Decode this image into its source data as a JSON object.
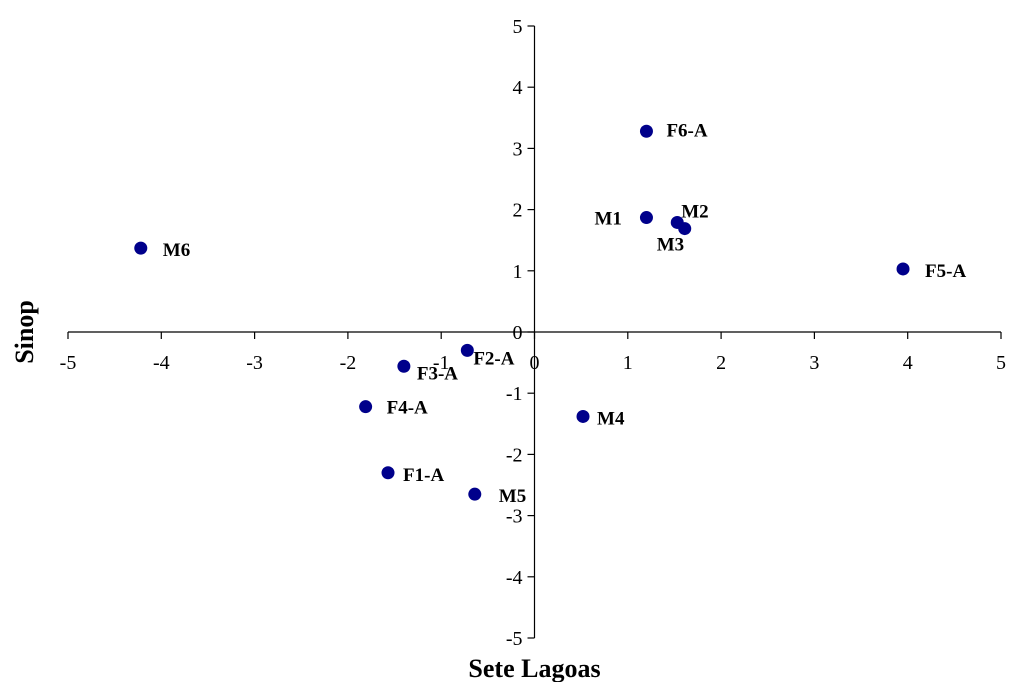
{
  "chart_data": {
    "type": "scatter",
    "xlabel": "Sete Lagoas",
    "ylabel": "Sinop",
    "xlim": [
      -5,
      5
    ],
    "ylim": [
      -5,
      5
    ],
    "x_ticks": [
      -5,
      -4,
      -3,
      -2,
      -1,
      0,
      1,
      2,
      3,
      4,
      5
    ],
    "y_ticks": [
      -5,
      -4,
      -3,
      -2,
      -1,
      0,
      1,
      2,
      3,
      4,
      5
    ],
    "grid": false,
    "legend": false,
    "marker_color": "#00008B",
    "points": [
      {
        "label": "F6-A",
        "x": 1.2,
        "y": 3.28
      },
      {
        "label": "M1",
        "x": 1.2,
        "y": 1.87
      },
      {
        "label": "M2",
        "x": 1.53,
        "y": 1.79
      },
      {
        "label": "M3",
        "x": 1.61,
        "y": 1.69
      },
      {
        "label": "M6",
        "x": -4.22,
        "y": 1.37
      },
      {
        "label": "F5-A",
        "x": 3.95,
        "y": 1.03
      },
      {
        "label": "F2-A",
        "x": -0.72,
        "y": -0.3
      },
      {
        "label": "F3-A",
        "x": -1.4,
        "y": -0.56
      },
      {
        "label": "F4-A",
        "x": -1.81,
        "y": -1.22
      },
      {
        "label": "M4",
        "x": 0.52,
        "y": -1.38
      },
      {
        "label": "F1-A",
        "x": -1.57,
        "y": -2.3
      },
      {
        "label": "M5",
        "x": -0.64,
        "y": -2.65
      }
    ]
  }
}
